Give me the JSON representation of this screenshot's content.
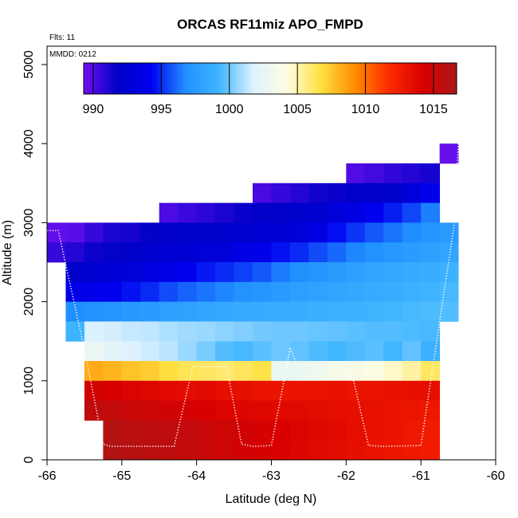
{
  "chart_data": {
    "type": "heatmap",
    "title": "ORCAS RF11miz APO_FMPD",
    "xlabel": "Latitude (deg N)",
    "ylabel": "Altitude (m)",
    "xlim": [
      -66,
      -60
    ],
    "ylim": [
      0,
      5200
    ],
    "xticks": [
      -66,
      -65,
      -64,
      -63,
      -62,
      -61,
      -60
    ],
    "yticks": [
      0,
      1000,
      2000,
      3000,
      4000,
      5000
    ],
    "annotations": {
      "flights": "Flts: 11",
      "date": "MMDD: 0212"
    },
    "colorbar": {
      "vmin": 989.3,
      "vmax": 1016.7,
      "ticks": [
        990,
        995,
        1000,
        1005,
        1010,
        1015
      ],
      "colors": [
        "#6f10ef",
        "#0000c8",
        "#0000f0",
        "#2090ff",
        "#3fb5ff",
        "#ddf2ff",
        "#fffde0",
        "#ffe040",
        "#ff8c00",
        "#ff2a00",
        "#d80000",
        "#a81818"
      ]
    },
    "grid": false,
    "legend": "top",
    "cell_size": {
      "dlat": 0.25,
      "dalt": 250
    },
    "rows": [
      {
        "alt": 3875,
        "lat0": -60.75,
        "values": [
          989.5
        ]
      },
      {
        "alt": 3625,
        "lat0": -62.0,
        "values": [
          990.0,
          990.3,
          990.7,
          991.0,
          991.3
        ]
      },
      {
        "alt": 3375,
        "lat0": -63.25,
        "values": [
          990.2,
          990.6,
          991.0,
          991.4,
          991.6,
          991.8,
          991.9,
          992.1,
          993.0,
          994.0
        ]
      },
      {
        "alt": 3125,
        "lat0": -64.5,
        "values": [
          990.1,
          990.5,
          990.8,
          991.2,
          991.6,
          991.8,
          991.9,
          992.0,
          992.3,
          992.9,
          993.5,
          994.3,
          994.8,
          995.5,
          996.5
        ]
      },
      {
        "alt": 2875,
        "lat0": -66.0,
        "values": [
          989.6,
          989.8,
          990.6,
          991.2,
          991.3,
          991.7,
          991.9,
          992.0,
          992.0,
          992.1,
          992.2,
          992.4,
          992.6,
          992.9,
          993.5,
          994.5,
          995.2,
          995.8,
          996.3,
          996.7,
          997.2,
          997.5
        ]
      },
      {
        "alt": 2625,
        "lat0": -66.0,
        "values": [
          990.6,
          991.0,
          991.5,
          991.7,
          992.0,
          992.2,
          992.4,
          992.5,
          992.8,
          993.0,
          993.5,
          994.0,
          994.6,
          995.0,
          995.6,
          996.1,
          996.6,
          996.9,
          997.3,
          997.6,
          997.9,
          998.1
        ]
      },
      {
        "alt": 2375,
        "lat0": -65.75,
        "values": [
          992.0,
          992.3,
          992.6,
          992.8,
          993.2,
          993.7,
          994.2,
          994.7,
          995.0,
          995.4,
          995.8,
          996.4,
          996.8,
          997.1,
          997.5,
          997.8,
          998.1,
          998.4,
          998.6,
          998.8,
          999.0
        ]
      },
      {
        "alt": 2125,
        "lat0": -65.75,
        "values": [
          993.6,
          993.9,
          994.2,
          994.6,
          995.0,
          995.6,
          996.0,
          996.3,
          996.6,
          996.9,
          997.2,
          997.5,
          997.8,
          998.0,
          998.2,
          998.4,
          998.6,
          998.8,
          999.0,
          999.2,
          999.4
        ]
      },
      {
        "alt": 1875,
        "lat0": -65.75,
        "values": [
          996.8,
          997.0,
          997.2,
          997.4,
          997.6,
          997.8,
          998.0,
          998.2,
          998.4,
          998.5,
          998.6,
          998.7,
          998.8,
          998.9,
          999.0,
          999.1,
          999.2,
          999.3,
          999.4,
          999.5,
          999.6
        ]
      },
      {
        "alt": 1625,
        "lat0": -65.75,
        "values": [
          999.2,
          1001.7,
          1001.6,
          1001.4,
          1001.3,
          1001.0,
          1000.8,
          1000.7,
          1000.5,
          1000.3,
          1000.1,
          1000.0,
          1000.0,
          999.9,
          999.8,
          999.7,
          999.6,
          999.6,
          999.5,
          999.4
        ]
      },
      {
        "alt": 1375,
        "lat0": -65.5,
        "values": [
          1002.6,
          1002.2,
          1001.8,
          1001.5,
          1001.2,
          1000.7,
          1000.2,
          999.6,
          999.4,
          999.7,
          1000.0,
          999.8,
          999.5,
          999.3,
          999.5,
          999.7,
          999.3,
          999.8,
          999.0
        ]
      },
      {
        "alt": 1125,
        "lat0": -65.5,
        "values": [
          1008.3,
          1008.0,
          1007.6,
          1007.3,
          1006.8,
          1006.4,
          1006.2,
          1006.0,
          1006.3,
          1006.6,
          1002.8,
          1002.8,
          1003.1,
          1003.6,
          1003.8,
          1004.2,
          1004.6,
          1005.2,
          1006.2
        ]
      },
      {
        "alt": 875,
        "lat0": -65.5,
        "values": [
          1014.5,
          1014.3,
          1014.0,
          1013.8,
          1013.6,
          1013.5,
          1013.6,
          1013.4,
          1013.3,
          1013.1,
          1013.0,
          1013.0,
          1013.1,
          1013.2,
          1013.0,
          1013.1,
          1013.2,
          1013.3,
          1013.3
        ]
      },
      {
        "alt": 625,
        "lat0": -65.5,
        "values": [
          1015.5,
          1015.3,
          1015.0,
          1014.8,
          1014.6,
          1014.4,
          1014.2,
          1014.0,
          1013.9,
          1013.8,
          1013.7,
          1013.6,
          1013.5,
          1013.4,
          1013.3,
          1013.2,
          1013.0,
          1012.9,
          1012.8
        ]
      },
      {
        "alt": 375,
        "lat0": -65.25,
        "values": [
          1016.0,
          1015.8,
          1015.6,
          1015.5,
          1015.3,
          1015.0,
          1014.8,
          1014.6,
          1014.4,
          1014.2,
          1014.0,
          1013.8,
          1013.6,
          1013.4,
          1013.2,
          1013.0,
          1012.8,
          1012.6
        ]
      },
      {
        "alt": 125,
        "lat0": -65.25,
        "values": [
          1016.2,
          1016.0,
          1015.8,
          1015.6,
          1015.3,
          1015.0,
          1014.8,
          1014.6,
          1014.3,
          1014.1,
          1013.9,
          1013.7,
          1013.5,
          1013.3,
          1013.1,
          1012.9,
          1012.7,
          1012.6
        ]
      }
    ],
    "flight_track": [
      [
        -66.0,
        2900
      ],
      [
        -65.85,
        2900
      ],
      [
        -65.5,
        1400
      ],
      [
        -65.25,
        200
      ],
      [
        -65.15,
        170
      ],
      [
        -64.6,
        170
      ],
      [
        -64.3,
        170
      ],
      [
        -64.05,
        1180
      ],
      [
        -63.6,
        1180
      ],
      [
        -63.4,
        200
      ],
      [
        -63.25,
        170
      ],
      [
        -63.0,
        180
      ],
      [
        -62.75,
        1400
      ],
      [
        -62.65,
        1200
      ],
      [
        -62.0,
        1200
      ],
      [
        -61.9,
        1000
      ],
      [
        -61.7,
        180
      ],
      [
        -61.5,
        170
      ],
      [
        -61.0,
        180
      ],
      [
        -60.55,
        3000
      ],
      [
        -60.5,
        4000
      ]
    ]
  }
}
